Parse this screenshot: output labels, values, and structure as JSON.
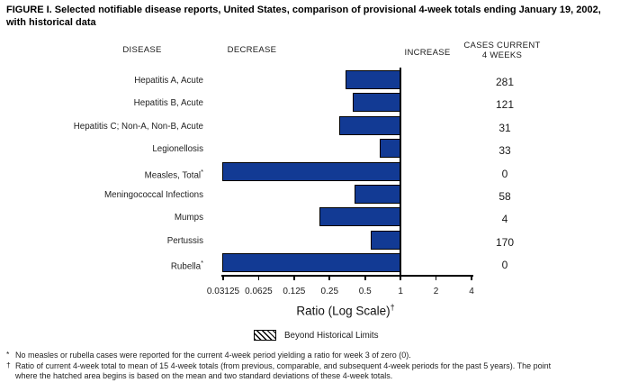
{
  "title": "FIGURE I. Selected notifiable disease reports, United States, comparison of provisional 4-week totals ending January 19, 2002, with historical data",
  "columns": {
    "disease": "DISEASE",
    "decrease": "DECREASE",
    "increase": "INCREASE",
    "cases_line1": "CASES CURRENT",
    "cases_line2": "4 WEEKS"
  },
  "chart_data": {
    "type": "bar",
    "orientation": "horizontal",
    "scale": "log2",
    "title": "Selected notifiable disease reports, United States, comparison of provisional 4-week totals ending January 19, 2002, with historical data",
    "axis_label": "Ratio (Log Scale)",
    "axis_label_sup": "†",
    "baseline_ratio": 1,
    "xlim": [
      0.03125,
      4
    ],
    "x_ticks": [
      0.03125,
      0.0625,
      0.125,
      0.25,
      0.5,
      1,
      2,
      4
    ],
    "x_tick_labels": [
      "0.03125",
      "0.0625",
      "0.125",
      "0.25",
      "0.5",
      "1",
      "2",
      "4"
    ],
    "bar_color": "#123a94",
    "rows": [
      {
        "disease": "Hepatitis A, Acute",
        "sup": "",
        "ratio": 0.34,
        "cases": "281"
      },
      {
        "disease": "Hepatitis B, Acute",
        "sup": "",
        "ratio": 0.39,
        "cases": "121"
      },
      {
        "disease": "Hepatitis C; Non-A, Non-B, Acute",
        "sup": "",
        "ratio": 0.3,
        "cases": "31"
      },
      {
        "disease": "Legionellosis",
        "sup": "",
        "ratio": 0.67,
        "cases": "33"
      },
      {
        "disease": "Measles, Total",
        "sup": "*",
        "ratio": 0,
        "cases": "0"
      },
      {
        "disease": "Meningococcal Infections",
        "sup": "",
        "ratio": 0.41,
        "cases": "58"
      },
      {
        "disease": "Mumps",
        "sup": "",
        "ratio": 0.205,
        "cases": "4"
      },
      {
        "disease": "Pertussis",
        "sup": "",
        "ratio": 0.56,
        "cases": "170"
      },
      {
        "disease": "Rubella",
        "sup": "*",
        "ratio": 0,
        "cases": "0"
      }
    ],
    "legend": {
      "swatch": "hatched",
      "label": "Beyond Historical Limits"
    }
  },
  "footnotes": [
    {
      "symbol": "*",
      "lines": [
        "No measles or rubella cases were reported for the current 4-week period yielding a ratio for week 3 of zero (0)."
      ]
    },
    {
      "symbol": "†",
      "lines": [
        "Ratio of current 4-week total to mean of 15 4-week totals (from previous, comparable, and subsequent 4-week periods for the past 5 years). The point",
        "where the hatched area begins is based on the mean and two standard deviations of these 4-week totals."
      ]
    }
  ]
}
